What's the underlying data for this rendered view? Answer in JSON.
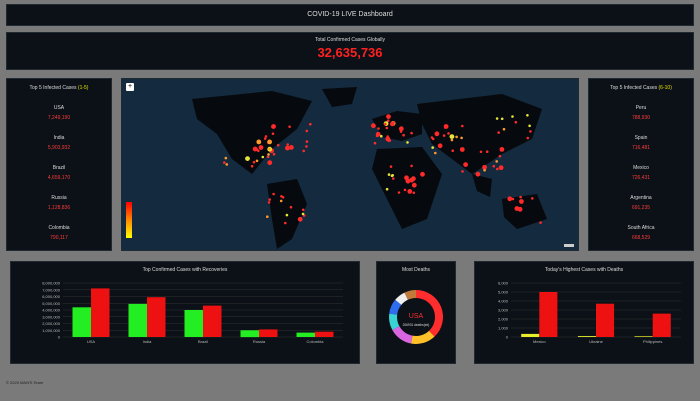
{
  "header": {
    "title": "COVID-19 LIVE Dashboard"
  },
  "total": {
    "label": "Total Confirmed Cases Globally",
    "value": "32,635,736"
  },
  "left_panel": {
    "title_prefix": "Top 5 Infected Cases ",
    "title_range": "(1-5)",
    "items": [
      {
        "name": "USA",
        "value": "7,249,190"
      },
      {
        "name": "India",
        "value": "5,903,932"
      },
      {
        "name": "Brazil",
        "value": "4,659,170"
      },
      {
        "name": "Russia",
        "value": "1,128,836"
      },
      {
        "name": "Colombia",
        "value": "790,117"
      }
    ]
  },
  "right_panel": {
    "title_prefix": "Top 5 Infected Cases ",
    "title_range": "(6-10)",
    "items": [
      {
        "name": "Peru",
        "value": "788,930"
      },
      {
        "name": "Spain",
        "value": "716,481"
      },
      {
        "name": "Mexico",
        "value": "726,431"
      },
      {
        "name": "Argentina",
        "value": "691,235"
      },
      {
        "name": "South Africa",
        "value": "668,529"
      }
    ]
  },
  "map": {
    "zoom_label": "+",
    "colors": {
      "ocean": "#142a3e",
      "land": "#06090d"
    }
  },
  "chart_data": [
    {
      "type": "bar",
      "title": "Top Confirmed Cases with Recoveries",
      "categories": [
        "USA",
        "India",
        "Brazil",
        "Russia",
        "Colombia"
      ],
      "ytick_labels": [
        "8,000,000",
        "7,000,000",
        "6,000,000",
        "5,000,000",
        "4,000,000",
        "3,000,000",
        "2,000,000",
        "1,000,000",
        "0"
      ],
      "ylim": [
        0,
        8000000
      ],
      "series": [
        {
          "color": "#22ee22",
          "values": [
            4400000,
            4900000,
            4000000,
            1000000,
            650000
          ]
        },
        {
          "color": "#ee1111",
          "values": [
            7200000,
            5900000,
            4650000,
            1130000,
            790000
          ]
        }
      ]
    },
    {
      "type": "pie",
      "title": "Most Deaths",
      "center_label": "USA",
      "center_sublabel": "206931 deaths(ed)",
      "slices": [
        {
          "value": 38,
          "color": "#ff2d2d"
        },
        {
          "value": 15,
          "color": "#ffc02a"
        },
        {
          "value": 14,
          "color": "#d966e0"
        },
        {
          "value": 10,
          "color": "#3ad3d3"
        },
        {
          "value": 9,
          "color": "#2f6df0"
        },
        {
          "value": 7,
          "color": "#f0f0f0"
        },
        {
          "value": 7,
          "color": "#c07a3a"
        }
      ]
    },
    {
      "type": "bar",
      "title": "Today's Highest Cases with Deaths",
      "categories": [
        "Mexico",
        "Ukraine",
        "Philippines"
      ],
      "ytick_labels": [
        "6,000",
        "5,000",
        "4,000",
        "3,000",
        "2,000",
        "1,000",
        "0"
      ],
      "ylim": [
        0,
        6000
      ],
      "series": [
        {
          "color": "#e8ef2a",
          "values": [
            350,
            100,
            80
          ]
        },
        {
          "color": "#ee1111",
          "values": [
            5000,
            3700,
            2600
          ]
        }
      ]
    }
  ],
  "footer": {
    "text": "© 2020 MAN'S Team"
  }
}
